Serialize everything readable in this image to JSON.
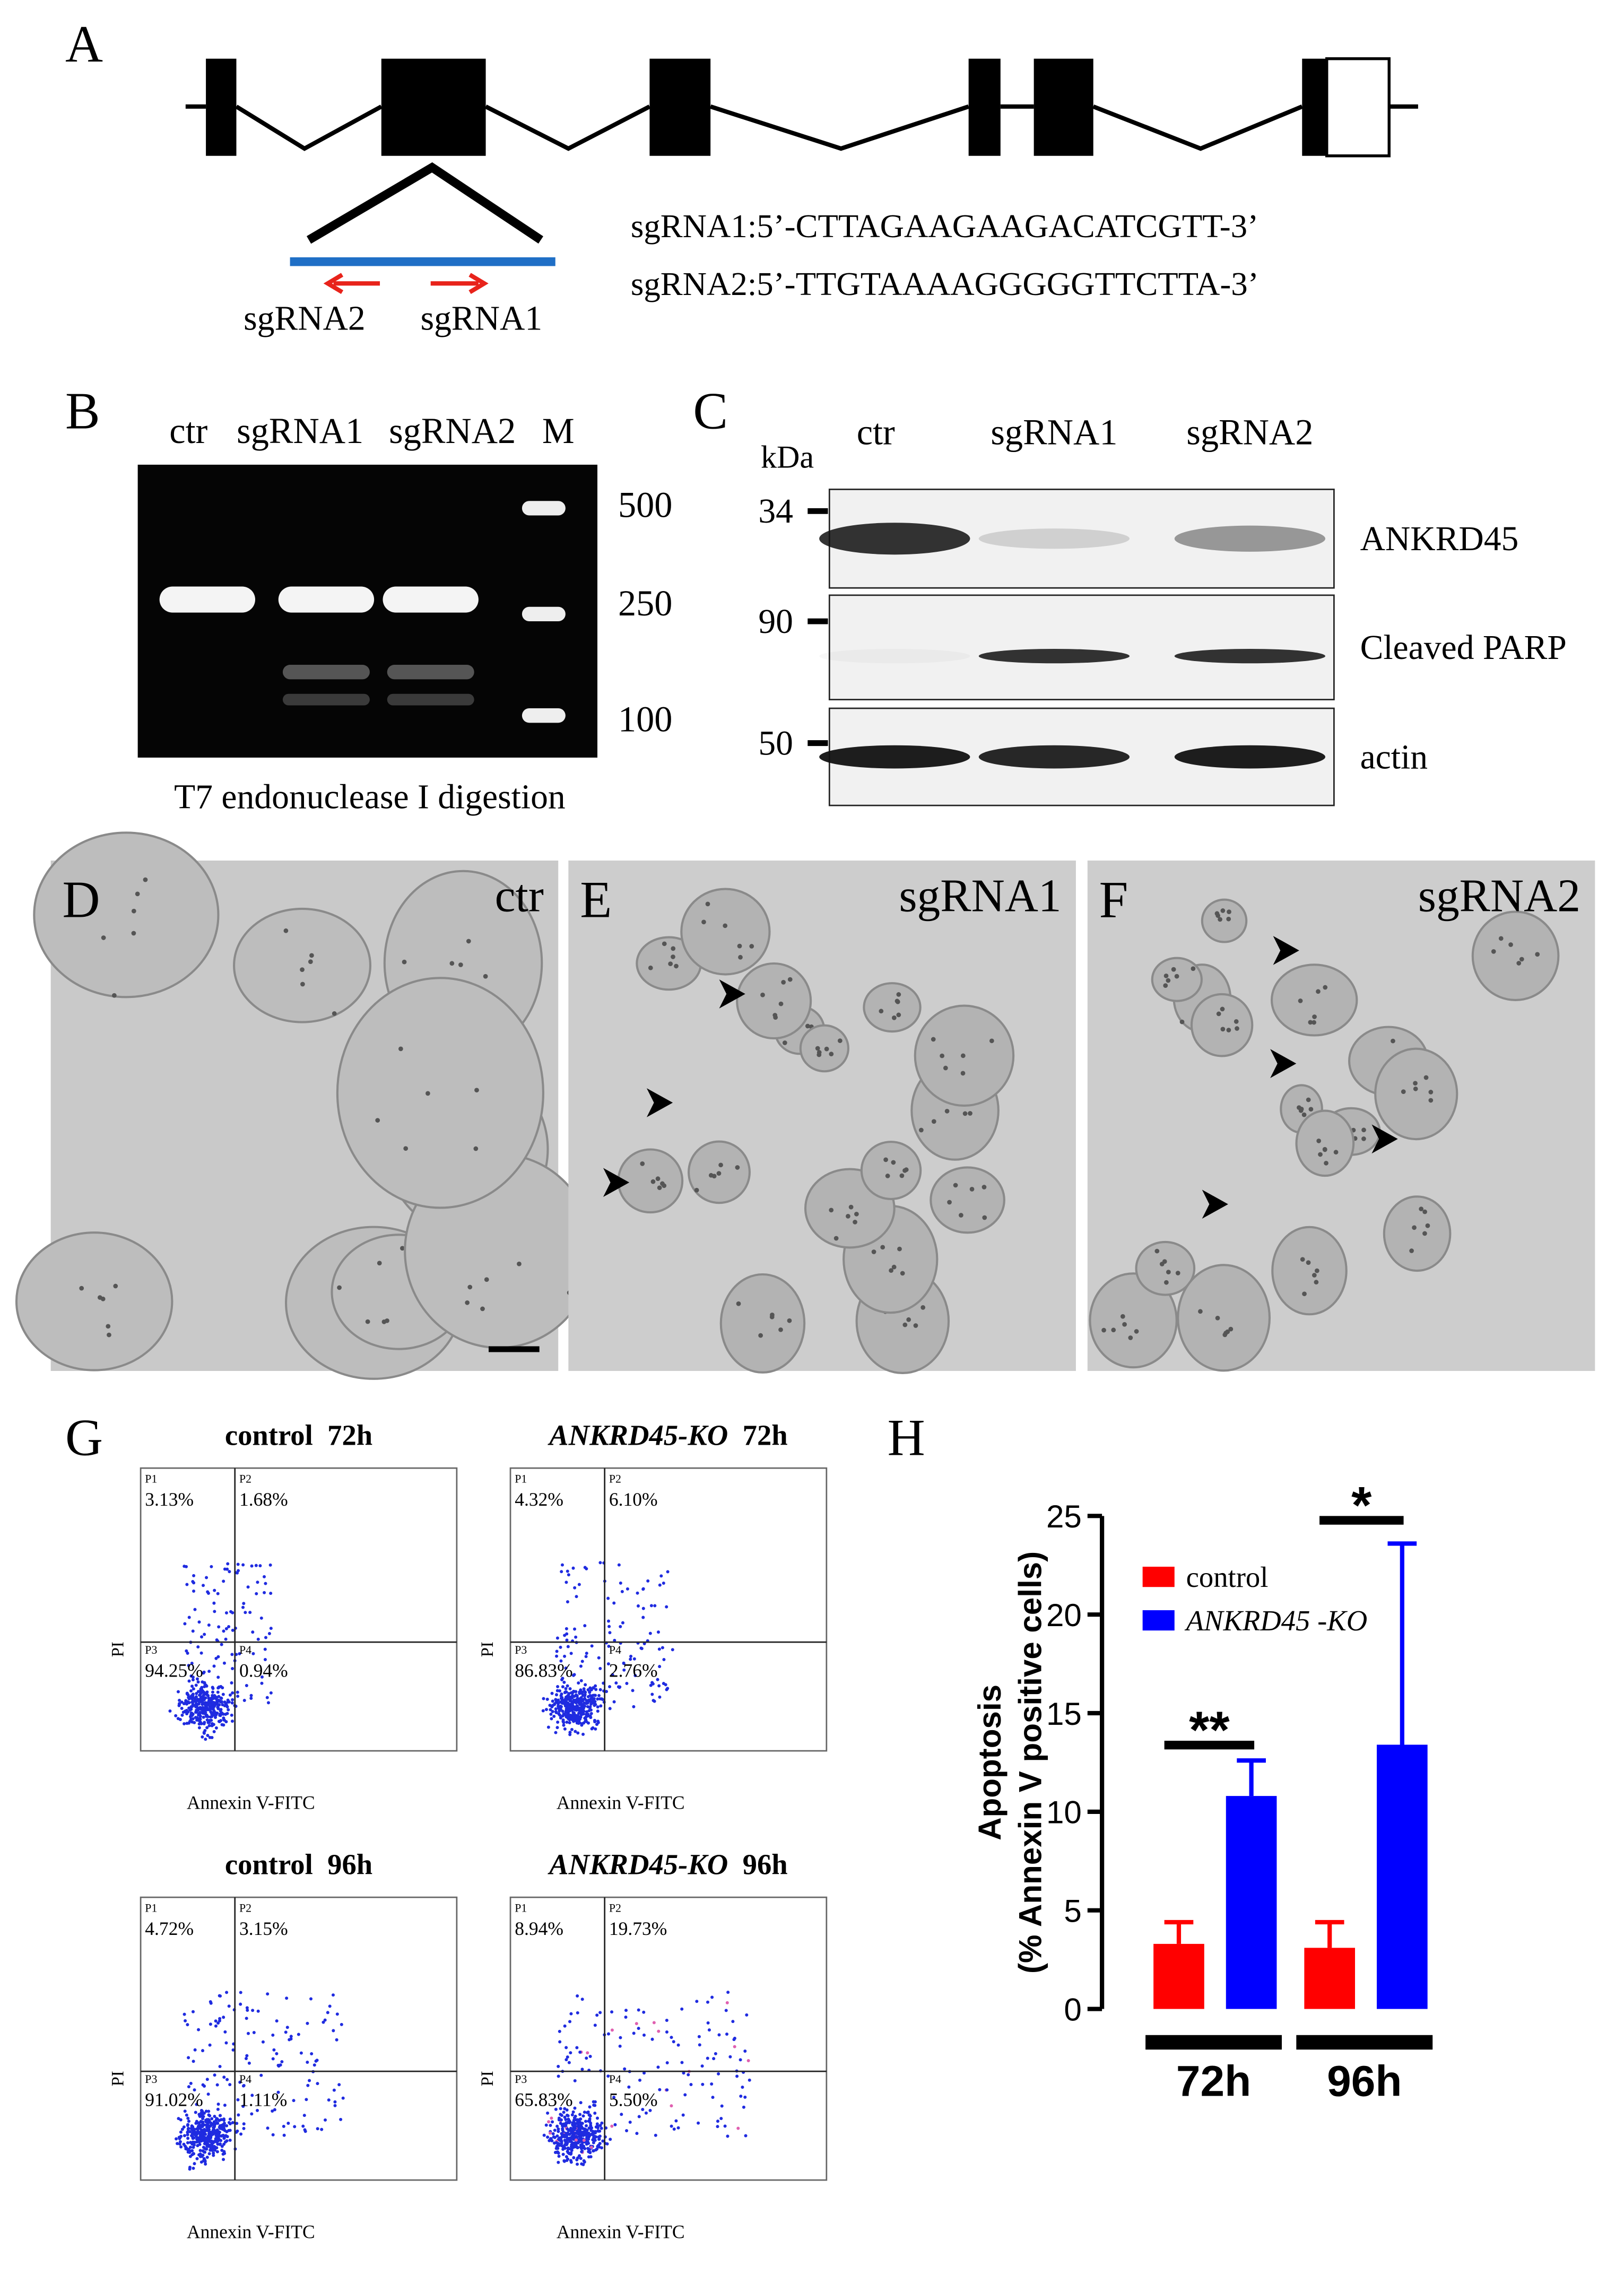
{
  "panel_a": {
    "label": "A",
    "seq1": "sgRNA1:5’-CTTAGAAGAAGACATCGTT-3’",
    "seq2": "sgRNA2:5’-TTGTAAAAGGGGGTTCTTA-3’",
    "arrow_left": "sgRNA2",
    "arrow_right": "sgRNA1"
  },
  "panel_b": {
    "label": "B",
    "lanes": [
      "ctr",
      "sgRNA1",
      "sgRNA2",
      "M"
    ],
    "sizes": [
      "500",
      "250",
      "100"
    ],
    "caption": "T7 endonuclease I digestion"
  },
  "panel_c": {
    "label": "C",
    "unit": "kDa",
    "lanes": [
      "ctr",
      "sgRNA1",
      "sgRNA2"
    ],
    "markers": [
      "34",
      "90",
      "50"
    ],
    "proteins": [
      "ANKRD45",
      "Cleaved PARP",
      "actin"
    ]
  },
  "micrographs": [
    {
      "label": "D",
      "condition": "ctr"
    },
    {
      "label": "E",
      "condition": "sgRNA1"
    },
    {
      "label": "F",
      "condition": "sgRNA2"
    }
  ],
  "panel_g": {
    "label": "G",
    "x_label": "Annexin V-FITC",
    "y_label": "PI",
    "gates": [
      "P1",
      "P2",
      "P3",
      "P4"
    ],
    "plots": [
      {
        "group": "control",
        "time": "72h",
        "quadrants": [
          "3.13%",
          "1.68%",
          "94.25%",
          "0.94%"
        ]
      },
      {
        "group": "ANKRD45-KO",
        "time": "72h",
        "quadrants": [
          "4.32%",
          "6.10%",
          "86.83%",
          "2.76%"
        ]
      },
      {
        "group": "control",
        "time": "96h",
        "quadrants": [
          "4.72%",
          "3.15%",
          "91.02%",
          "1.11%"
        ]
      },
      {
        "group": "ANKRD45-KO",
        "time": "96h",
        "quadrants": [
          "8.94%",
          "19.73%",
          "65.83%",
          "5.50%"
        ]
      }
    ]
  },
  "panel_h": {
    "label": "H",
    "type": "bar",
    "y_label_1": "Apoptosis",
    "y_label_2": "(% Annexin V positive cells)",
    "categories": [
      "72h",
      "96h"
    ],
    "series": [
      {
        "name": "control",
        "color": "#ff0000",
        "values": [
          3.3,
          3.1
        ],
        "errors": [
          1.1,
          1.3
        ]
      },
      {
        "name": "ANKRD45 -KO",
        "color": "#0000ff",
        "values": [
          10.8,
          13.4
        ],
        "errors": [
          1.8,
          10.2
        ]
      }
    ],
    "ylim": [
      0,
      25
    ],
    "yticks": [
      0,
      5,
      10,
      15,
      20,
      25
    ],
    "significance": [
      "**",
      "*"
    ]
  }
}
